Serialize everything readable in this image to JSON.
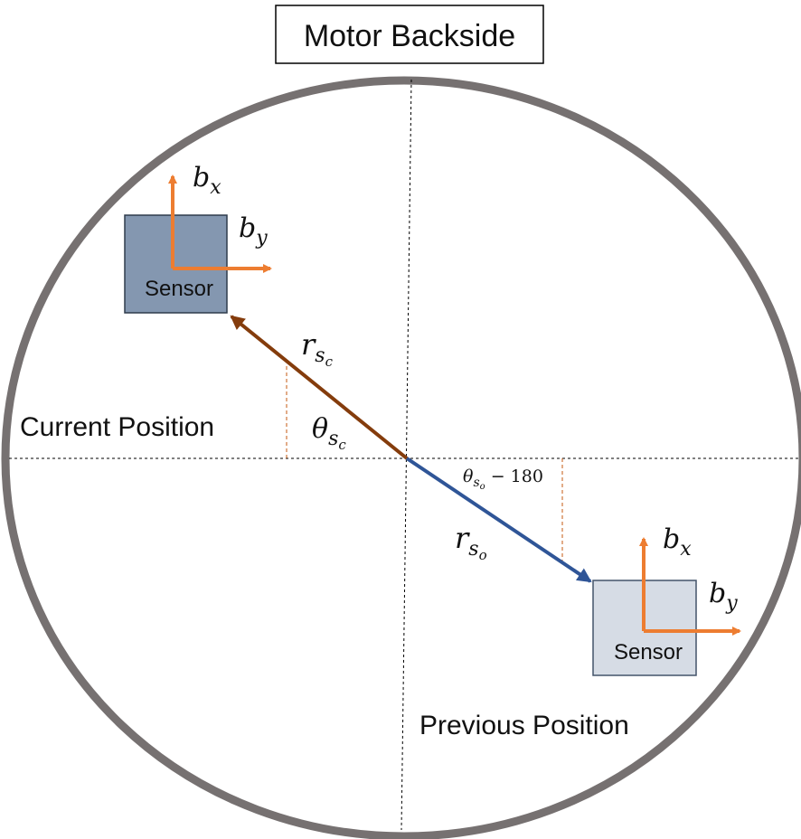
{
  "title": "Motor Backside",
  "labels": {
    "current_position": "Current Position",
    "previous_position": "Previous Position"
  },
  "sensors": [
    {
      "id": "current",
      "label": "Sensor",
      "fill": "#8497b0"
    },
    {
      "id": "previous",
      "label": "Sensor",
      "fill": "#d6dce5"
    }
  ],
  "axes": {
    "bx": {
      "base": "b",
      "sub": "x"
    },
    "by": {
      "base": "b",
      "sub": "y"
    }
  },
  "vectors": {
    "current": {
      "base": "r",
      "sub": "s",
      "subsub": "c",
      "color": "#843c0c"
    },
    "previous": {
      "base": "r",
      "sub": "s",
      "subsub": "o",
      "color": "#2f5597"
    }
  },
  "angles": {
    "current": {
      "base": "θ",
      "sub": "s",
      "subsub": "c"
    },
    "previous": {
      "base": "θ",
      "sub": "s",
      "subsub": "o",
      "suffix": " − 180"
    }
  },
  "colors": {
    "ring": "#767171",
    "axis_arrow": "#ed7d31",
    "angle_guide": "#c55a11",
    "crosshair": "#000000"
  }
}
